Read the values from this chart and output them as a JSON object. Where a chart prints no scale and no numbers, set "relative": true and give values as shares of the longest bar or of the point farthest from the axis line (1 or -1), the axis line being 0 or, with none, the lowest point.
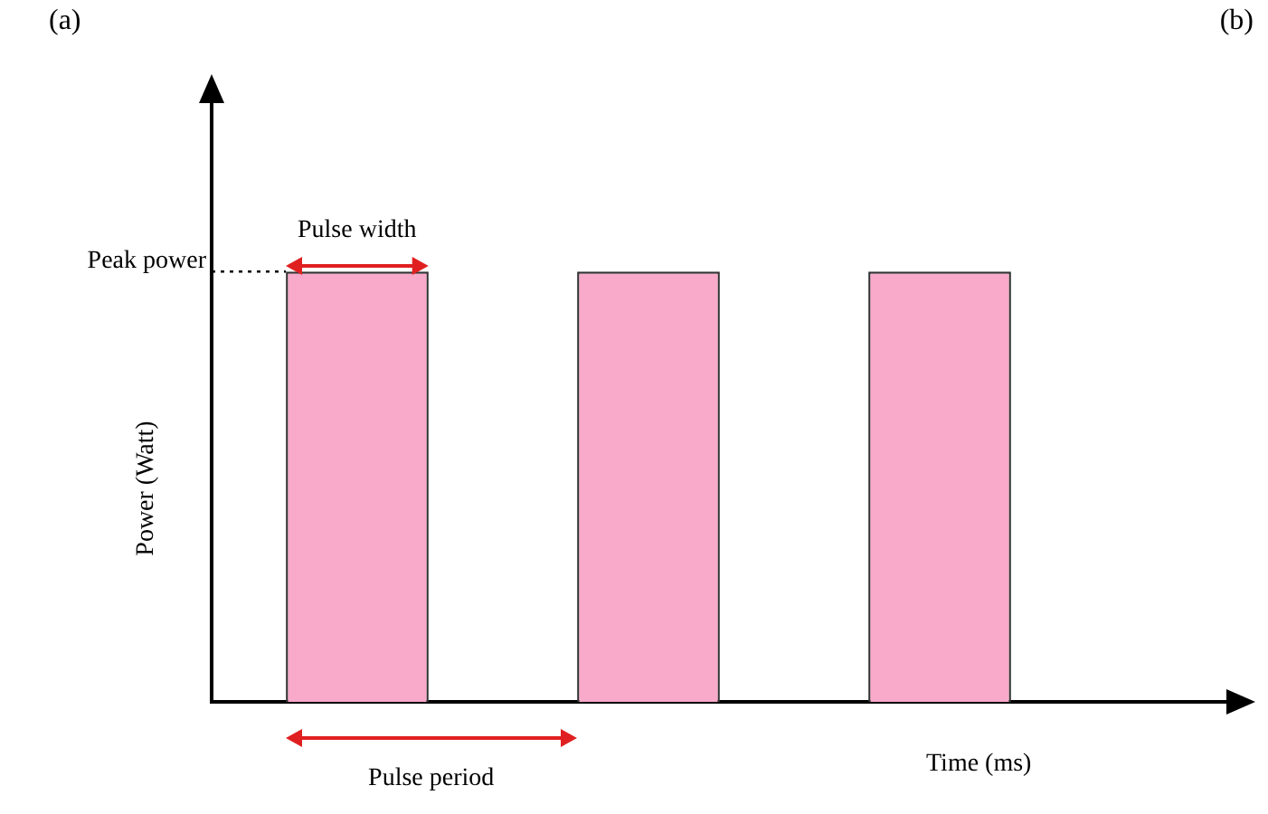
{
  "chart_data": {
    "type": "bar",
    "relative": true,
    "categories": [
      null,
      null,
      null
    ],
    "values": [
      1,
      1,
      1
    ],
    "color": "#f9a9c9",
    "xlabel": "Time (ms)",
    "ylabel": "Power (Watt)",
    "ref_lines": [
      {
        "axis": "y",
        "value": 1,
        "label": "Peak power",
        "line_style": "dotted",
        "color": "#000000"
      }
    ],
    "annotations": [
      "(a)",
      "(b)",
      "Pulse width",
      "Pulse period"
    ],
    "grid": false,
    "legend": false
  }
}
